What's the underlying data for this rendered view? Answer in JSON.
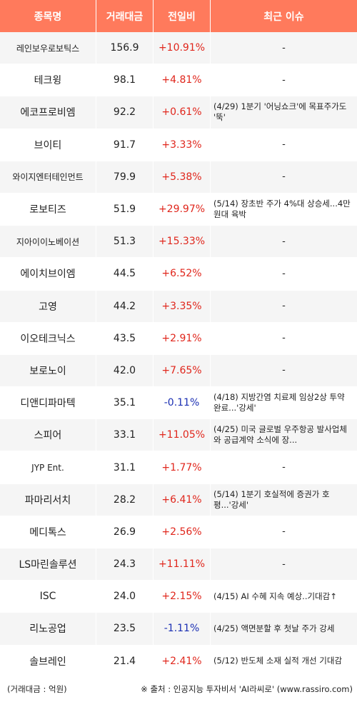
{
  "header": {
    "name": "종목명",
    "volume": "거래대금",
    "change": "전일비",
    "issue": "최근 이슈"
  },
  "rows": [
    {
      "name": "레인보우로보틱스",
      "volume": "156.9",
      "change": "+10.91%",
      "dir": "up",
      "issue": "-"
    },
    {
      "name": "테크윙",
      "volume": "98.1",
      "change": "+4.81%",
      "dir": "up",
      "issue": "-"
    },
    {
      "name": "에코프로비엠",
      "volume": "92.2",
      "change": "+0.61%",
      "dir": "up",
      "issue": "(4/29) 1분기 '어닝쇼크'에 목표주가도 '뚝'"
    },
    {
      "name": "브이티",
      "volume": "91.7",
      "change": "+3.33%",
      "dir": "up",
      "issue": "-"
    },
    {
      "name": "와이지엔터테인먼트",
      "volume": "79.9",
      "change": "+5.38%",
      "dir": "up",
      "issue": "-"
    },
    {
      "name": "로보티즈",
      "volume": "51.9",
      "change": "+29.97%",
      "dir": "up",
      "issue": "(5/14) 장초반 주가 4%대 상승세...4만원대 육박"
    },
    {
      "name": "지아이이노베이션",
      "volume": "51.3",
      "change": "+15.33%",
      "dir": "up",
      "issue": "-"
    },
    {
      "name": "에이치브이엠",
      "volume": "44.5",
      "change": "+6.52%",
      "dir": "up",
      "issue": "-"
    },
    {
      "name": "고영",
      "volume": "44.2",
      "change": "+3.35%",
      "dir": "up",
      "issue": "-"
    },
    {
      "name": "이오테크닉스",
      "volume": "43.5",
      "change": "+2.91%",
      "dir": "up",
      "issue": "-"
    },
    {
      "name": "보로노이",
      "volume": "42.0",
      "change": "+7.65%",
      "dir": "up",
      "issue": "-"
    },
    {
      "name": "디앤디파마텍",
      "volume": "35.1",
      "change": "-0.11%",
      "dir": "down",
      "issue": "(4/18) 지방간염 치료제 임상2상 투약 완료...'강세'"
    },
    {
      "name": "스피어",
      "volume": "33.1",
      "change": "+11.05%",
      "dir": "up",
      "issue": "(4/25) 미국 글로벌 우주항공 발사업체와 공급계약 소식에 장..."
    },
    {
      "name": "JYP Ent.",
      "volume": "31.1",
      "change": "+1.77%",
      "dir": "up",
      "issue": "-"
    },
    {
      "name": "파마리서치",
      "volume": "28.2",
      "change": "+6.41%",
      "dir": "up",
      "issue": "(5/14) 1분기 호실적에 증권가 호평...'강세'"
    },
    {
      "name": "메디톡스",
      "volume": "26.9",
      "change": "+2.56%",
      "dir": "up",
      "issue": "-"
    },
    {
      "name": "LS마린솔루션",
      "volume": "24.3",
      "change": "+11.11%",
      "dir": "up",
      "issue": "-"
    },
    {
      "name": "ISC",
      "volume": "24.0",
      "change": "+2.15%",
      "dir": "up",
      "issue": "(4/15) AI 수혜 지속 예상..기대감↑"
    },
    {
      "name": "리노공업",
      "volume": "23.5",
      "change": "-1.11%",
      "dir": "down",
      "issue": "(4/25) 액면분할 후 첫날 주가 강세"
    },
    {
      "name": "솔브레인",
      "volume": "21.4",
      "change": "+2.41%",
      "dir": "up",
      "issue": "(5/12) 반도체 소재 실적 개선 기대감"
    }
  ],
  "footer": {
    "unit": "(거래대금 : 억원)",
    "source": "※ 출처 : 인공지능 투자비서 'AI라씨로' (www.rassiro.com)"
  },
  "colors": {
    "header_bg": "#ff7a5c",
    "up": "#e0261c",
    "down": "#1b2fb3",
    "row_alt": "#f5f5f5"
  }
}
